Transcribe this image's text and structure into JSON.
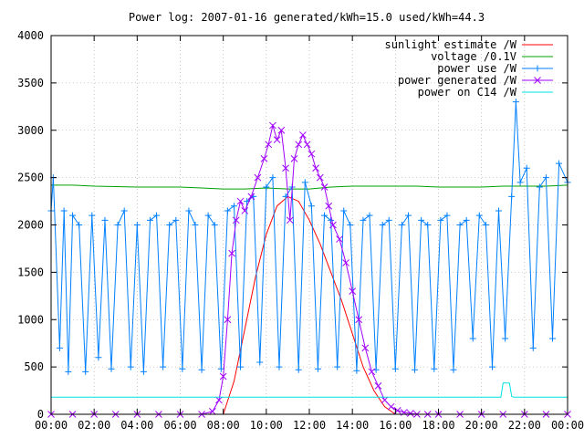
{
  "chart_data": {
    "type": "line",
    "title": "Power log: 2007-01-16 generated/kWh=15.0 used/kWh=44.3",
    "xlabel": "",
    "ylabel": "",
    "xlim": [
      0,
      24
    ],
    "ylim": [
      0,
      4000
    ],
    "x_ticks": [
      "00:00",
      "02:00",
      "04:00",
      "06:00",
      "08:00",
      "10:00",
      "12:00",
      "14:00",
      "16:00",
      "18:00",
      "20:00",
      "22:00",
      "00:00"
    ],
    "y_ticks": [
      "0",
      "500",
      "1000",
      "1500",
      "2000",
      "2500",
      "3000",
      "3500",
      "4000"
    ],
    "grid": true,
    "legend_position": "top-right",
    "series": [
      {
        "name": "sunlight estimate /W",
        "color": "#ff0000",
        "marker": "none",
        "x": [
          8.0,
          8.5,
          9.0,
          9.5,
          10.0,
          10.5,
          11.0,
          11.5,
          12.0,
          12.5,
          13.0,
          13.5,
          14.0,
          14.5,
          15.0,
          15.5,
          16.0
        ],
        "y": [
          0,
          350,
          900,
          1450,
          1900,
          2200,
          2300,
          2250,
          2050,
          1800,
          1500,
          1200,
          850,
          500,
          250,
          80,
          0
        ]
      },
      {
        "name": "voltage /0.1V",
        "color": "#00a000",
        "marker": "none",
        "x": [
          0,
          1,
          2,
          3,
          4,
          5,
          6,
          7,
          8,
          9,
          10,
          11,
          12,
          13,
          14,
          15,
          16,
          17,
          18,
          19,
          20,
          21,
          22,
          23,
          24
        ],
        "y": [
          2420,
          2420,
          2410,
          2405,
          2400,
          2400,
          2400,
          2390,
          2380,
          2380,
          2390,
          2380,
          2380,
          2400,
          2410,
          2410,
          2410,
          2410,
          2400,
          2400,
          2400,
          2410,
          2410,
          2410,
          2420
        ]
      },
      {
        "name": "power use /W",
        "color": "#0080ff",
        "marker": "plus",
        "x": [
          0,
          0.1,
          0.4,
          0.6,
          0.8,
          1.0,
          1.3,
          1.6,
          1.9,
          2.2,
          2.5,
          2.8,
          3.1,
          3.4,
          3.7,
          4.0,
          4.3,
          4.6,
          4.9,
          5.2,
          5.5,
          5.8,
          6.1,
          6.4,
          6.7,
          7.0,
          7.3,
          7.6,
          7.9,
          8.2,
          8.5,
          8.8,
          9.1,
          9.4,
          9.7,
          10.0,
          10.3,
          10.6,
          10.9,
          11.2,
          11.5,
          11.8,
          12.1,
          12.4,
          12.7,
          13.0,
          13.3,
          13.6,
          13.9,
          14.2,
          14.5,
          14.8,
          15.1,
          15.4,
          15.7,
          16.0,
          16.3,
          16.6,
          16.9,
          17.2,
          17.5,
          17.8,
          18.1,
          18.4,
          18.7,
          19.0,
          19.3,
          19.6,
          19.9,
          20.2,
          20.5,
          20.8,
          21.1,
          21.4,
          21.6,
          21.8,
          22.1,
          22.4,
          22.7,
          23.0,
          23.3,
          23.6,
          24.0
        ],
        "y": [
          2150,
          2500,
          700,
          2150,
          450,
          2100,
          2000,
          450,
          2100,
          600,
          2050,
          480,
          2000,
          2150,
          500,
          2000,
          450,
          2050,
          2100,
          500,
          2000,
          2050,
          480,
          2150,
          2000,
          470,
          2100,
          2000,
          480,
          2150,
          2200,
          500,
          2250,
          2300,
          550,
          2400,
          2500,
          500,
          2300,
          2400,
          470,
          2450,
          2200,
          480,
          2100,
          2050,
          500,
          2150,
          2000,
          460,
          2050,
          2100,
          470,
          2000,
          2050,
          480,
          2000,
          2100,
          470,
          2050,
          2000,
          480,
          2050,
          2100,
          470,
          2000,
          2050,
          800,
          2100,
          2000,
          500,
          2150,
          800,
          2300,
          3300,
          2450,
          2600,
          700,
          2400,
          2500,
          800,
          2650,
          2450
        ]
      },
      {
        "name": "power generated /W",
        "color": "#a000ff",
        "marker": "x",
        "x": [
          0,
          1,
          2,
          3,
          4,
          5,
          6,
          7,
          7.5,
          7.8,
          8.0,
          8.2,
          8.4,
          8.6,
          8.8,
          9.0,
          9.3,
          9.6,
          9.9,
          10.1,
          10.3,
          10.5,
          10.7,
          10.9,
          11.1,
          11.3,
          11.5,
          11.7,
          11.9,
          12.1,
          12.3,
          12.5,
          12.7,
          12.9,
          13.1,
          13.4,
          13.7,
          14.0,
          14.3,
          14.6,
          14.9,
          15.2,
          15.5,
          15.8,
          16.1,
          16.4,
          16.7,
          17.0,
          17.5,
          18,
          19,
          20,
          21,
          22,
          23,
          24
        ],
        "y": [
          0,
          0,
          0,
          0,
          0,
          0,
          0,
          0,
          30,
          150,
          400,
          1000,
          1700,
          2050,
          2250,
          2150,
          2300,
          2500,
          2700,
          2850,
          3050,
          2900,
          3000,
          2600,
          2050,
          2700,
          2850,
          2950,
          2850,
          2750,
          2600,
          2500,
          2400,
          2200,
          2000,
          1850,
          1600,
          1300,
          1000,
          700,
          450,
          300,
          150,
          80,
          40,
          20,
          10,
          0,
          0,
          0,
          0,
          0,
          0,
          0,
          0,
          0
        ]
      },
      {
        "name": "power on C14 /W",
        "color": "#00e0e0",
        "marker": "none",
        "x": [
          0,
          1,
          2,
          3,
          4,
          5,
          6,
          7,
          8,
          9,
          10,
          11,
          12,
          13,
          14,
          15,
          16,
          17,
          18,
          19,
          20,
          20.9,
          21.0,
          21.3,
          21.4,
          21.5,
          22,
          23,
          24
        ],
        "y": [
          180,
          180,
          180,
          180,
          180,
          180,
          180,
          180,
          180,
          180,
          180,
          180,
          180,
          180,
          180,
          180,
          180,
          180,
          180,
          180,
          180,
          180,
          330,
          330,
          190,
          180,
          180,
          180,
          180
        ]
      }
    ]
  }
}
